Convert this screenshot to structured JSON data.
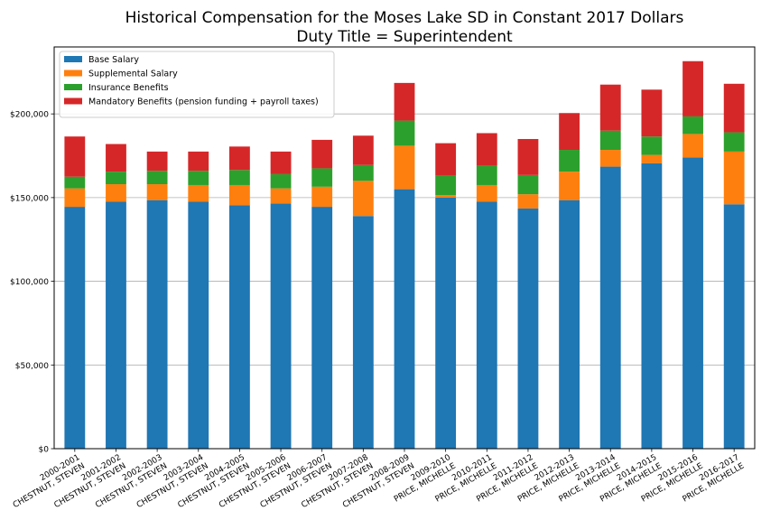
{
  "chart_data": {
    "type": "bar",
    "stacked": true,
    "title": "Historical Compensation for the Moses Lake SD in Constant 2017 Dollars",
    "subtitle": "Duty Title = Superintendent",
    "xlabel": "",
    "ylabel": "",
    "ylim": [
      0,
      240000
    ],
    "yticks": [
      0,
      50000,
      100000,
      150000,
      200000
    ],
    "ytick_labels": [
      "$0",
      "$50,000",
      "$100,000",
      "$150,000",
      "$200,000"
    ],
    "grid": "y",
    "legend_position": "top-left",
    "categories": [
      [
        "2000-2001",
        "CHESTNUT, STEVEN"
      ],
      [
        "2001-2002",
        "CHESTNUT, STEVEN"
      ],
      [
        "2002-2003",
        "CHESTNUT, STEVEN"
      ],
      [
        "2003-2004",
        "CHESTNUT, STEVEN"
      ],
      [
        "2004-2005",
        "CHESTNUT, STEVEN"
      ],
      [
        "2005-2006",
        "CHESTNUT, STEVEN"
      ],
      [
        "2006-2007",
        "CHESTNUT, STEVEN"
      ],
      [
        "2007-2008",
        "CHESTNUT, STEVEN"
      ],
      [
        "2008-2009",
        "CHESTNUT, STEVEN"
      ],
      [
        "2009-2010",
        "PRICE, MICHELLE"
      ],
      [
        "2010-2011",
        "PRICE, MICHELLE"
      ],
      [
        "2011-2012",
        "PRICE, MICHELLE"
      ],
      [
        "2012-2013",
        "PRICE, MICHELLE"
      ],
      [
        "2013-2014",
        "PRICE, MICHELLE"
      ],
      [
        "2014-2015",
        "PRICE, MICHELLE"
      ],
      [
        "2015-2016",
        "PRICE, MICHELLE"
      ],
      [
        "2016-2017",
        "PRICE, MICHELLE"
      ]
    ],
    "series": [
      {
        "name": "Base Salary",
        "color": "#1f77b4",
        "values": [
          144500,
          147500,
          148500,
          147500,
          145500,
          146500,
          144500,
          139000,
          155000,
          150000,
          147500,
          143500,
          148500,
          168500,
          170500,
          174000,
          146000
        ]
      },
      {
        "name": "Supplemental Salary",
        "color": "#ff7f0e",
        "values": [
          11000,
          10500,
          9500,
          10000,
          12000,
          9000,
          12000,
          21000,
          26000,
          1500,
          10000,
          8500,
          17000,
          10000,
          5000,
          14000,
          31500
        ]
      },
      {
        "name": "Insurance Benefits",
        "color": "#2ca02c",
        "values": [
          7000,
          7500,
          8000,
          8500,
          9000,
          8500,
          11000,
          9500,
          15000,
          11500,
          11500,
          11500,
          13000,
          11500,
          11000,
          10500,
          11500
        ]
      },
      {
        "name": "Mandatory Benefits (pension funding + payroll taxes)",
        "color": "#d62728",
        "values": [
          24000,
          16500,
          11500,
          11500,
          14000,
          13500,
          17000,
          17500,
          22500,
          19500,
          19500,
          21500,
          22000,
          27500,
          28000,
          33000,
          29000
        ]
      }
    ]
  }
}
